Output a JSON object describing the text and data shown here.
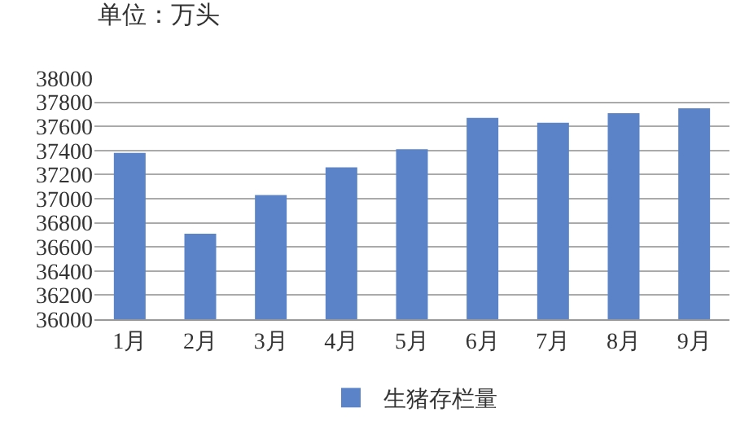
{
  "chart_data": {
    "type": "bar",
    "ylabel": "单位：万头",
    "categories": [
      "1月",
      "2月",
      "3月",
      "4月",
      "5月",
      "6月",
      "7月",
      "8月",
      "9月"
    ],
    "series": [
      {
        "name": "生猪存栏量",
        "color": "#5b84c8",
        "values": [
          37380,
          36710,
          37030,
          37260,
          37410,
          37670,
          37630,
          37710,
          37750
        ]
      }
    ],
    "ylim": [
      36000,
      38000
    ],
    "yticks": [
      36000,
      36200,
      36400,
      36600,
      36800,
      37000,
      37200,
      37400,
      37600,
      37800,
      38000
    ],
    "grid": "y",
    "legend": "bottom"
  }
}
